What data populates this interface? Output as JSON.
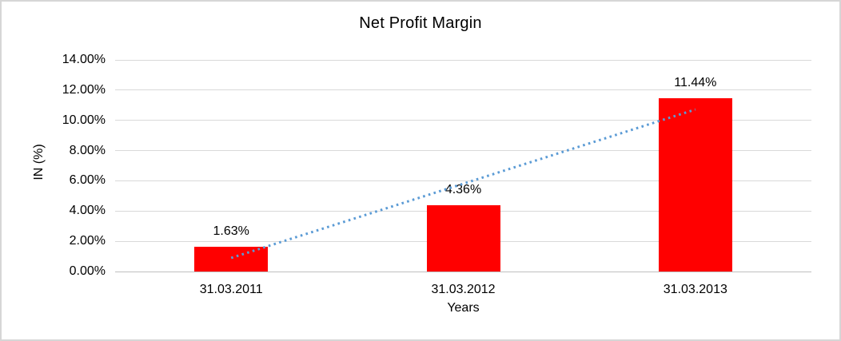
{
  "frame": {
    "background": "#ffffff",
    "border_color": "#d6d6d6"
  },
  "chart_data": {
    "type": "bar",
    "title": "Net Profit Margin",
    "categories": [
      "31.03.2011",
      "31.03.2012",
      "31.03.2013"
    ],
    "values": [
      1.63,
      4.36,
      11.44
    ],
    "data_labels": [
      "1.63%",
      "4.36%",
      "11.44%"
    ],
    "xlabel": "Years",
    "ylabel": "IN (%)",
    "ylim": [
      0,
      14
    ],
    "ytick_step": 2,
    "yticks": [
      "0.00%",
      "2.00%",
      "4.00%",
      "6.00%",
      "8.00%",
      "10.00%",
      "12.00%",
      "14.00%"
    ],
    "grid": true,
    "legend": "none",
    "bar_color": "#ff0000",
    "gridline_color": "#d9d9d9",
    "axis_line_color": "#bfbfbf",
    "text_color": "#000000",
    "trendline": {
      "style": "dotted",
      "shape": "linear",
      "color": "#5b9bd5",
      "start_value": 0.9,
      "end_value": 10.72
    }
  }
}
